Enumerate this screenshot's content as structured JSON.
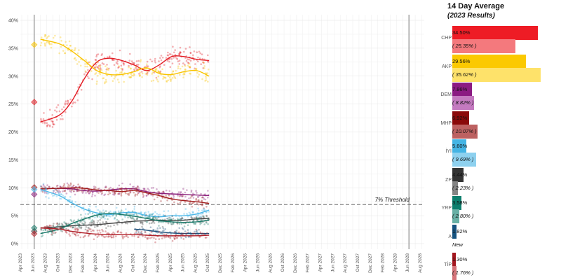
{
  "chart_data": {
    "type": "scatter",
    "y_ticks": [
      "0%",
      "5%",
      "10%",
      "15%",
      "20%",
      "25%",
      "30%",
      "35%",
      "40%"
    ],
    "ylim": [
      0,
      41
    ],
    "x_ticks": [
      "Apr 2023",
      "Jun 2023",
      "Aug 2023",
      "Oct 2023",
      "Dec 2023",
      "Feb 2024",
      "Apr 2024",
      "Jun 2024",
      "Aug 2024",
      "Oct 2024",
      "Dec 2024",
      "Feb 2025",
      "Apr 2025",
      "Jun 2025",
      "Aug 2025",
      "Oct 2025",
      "Dec 2025",
      "Feb 2026",
      "Apr 2026",
      "Jun 2026",
      "Aug 2026",
      "Oct 2026",
      "Dec 2026",
      "Feb 2027",
      "Apr 2027",
      "Jun 2027",
      "Aug 2027",
      "Oct 2027",
      "Dec 2027",
      "Feb 2028",
      "Apr 2028",
      "Jun 2028",
      "Aug 2028"
    ],
    "grid": true,
    "election_marker": "Jun 2023",
    "threshold": {
      "value": 7,
      "label": "7% Threshold"
    },
    "series": [
      {
        "name": "CHP",
        "color": "#e31b23",
        "result_2023": 25.35,
        "trend": [
          [
            "Jul 2023",
            21.8
          ],
          [
            "Oct 2023",
            23.0
          ],
          [
            "Dec 2023",
            25.5
          ],
          [
            "Feb 2024",
            29.5
          ],
          [
            "Apr 2024",
            32.5
          ],
          [
            "Jun 2024",
            33.2
          ],
          [
            "Aug 2024",
            32.8
          ],
          [
            "Oct 2024",
            32.0
          ],
          [
            "Dec 2024",
            31.0
          ],
          [
            "Feb 2025",
            32.0
          ],
          [
            "Apr 2025",
            33.5
          ],
          [
            "Jun 2025",
            33.5
          ],
          [
            "Aug 2025",
            33.0
          ],
          [
            "Oct 2025",
            32.8
          ]
        ]
      },
      {
        "name": "AKP",
        "color": "#f9c400",
        "result_2023": 35.62,
        "trend": [
          [
            "Jul 2023",
            36.6
          ],
          [
            "Oct 2023",
            35.8
          ],
          [
            "Dec 2023",
            34.5
          ],
          [
            "Feb 2024",
            32.8
          ],
          [
            "Apr 2024",
            31.0
          ],
          [
            "Jun 2024",
            30.3
          ],
          [
            "Aug 2024",
            30.3
          ],
          [
            "Oct 2024",
            30.8
          ],
          [
            "Dec 2024",
            31.5
          ],
          [
            "Feb 2025",
            30.5
          ],
          [
            "Apr 2025",
            30.3
          ],
          [
            "Jun 2025",
            30.8
          ],
          [
            "Aug 2025",
            31.0
          ],
          [
            "Oct 2025",
            30.0
          ]
        ]
      },
      {
        "name": "DEM",
        "color": "#8b1f7a",
        "result_2023": 8.82,
        "trend": [
          [
            "Jul 2023",
            9.8
          ],
          [
            "Oct 2023",
            9.9
          ],
          [
            "Dec 2023",
            9.8
          ],
          [
            "Feb 2024",
            9.5
          ],
          [
            "Apr 2024",
            9.4
          ],
          [
            "Jun 2024",
            9.6
          ],
          [
            "Aug 2024",
            9.8
          ],
          [
            "Oct 2024",
            9.8
          ],
          [
            "Dec 2024",
            9.3
          ],
          [
            "Feb 2025",
            9.0
          ],
          [
            "Apr 2025",
            8.9
          ],
          [
            "Jun 2025",
            8.8
          ],
          [
            "Aug 2025",
            8.7
          ],
          [
            "Oct 2025",
            8.6
          ]
        ]
      },
      {
        "name": "MHP",
        "color": "#a11d1d",
        "result_2023": 10.07,
        "trend": [
          [
            "Jul 2023",
            9.8
          ],
          [
            "Oct 2023",
            9.9
          ],
          [
            "Dec 2023",
            10.0
          ],
          [
            "Feb 2024",
            9.9
          ],
          [
            "Apr 2024",
            9.6
          ],
          [
            "Jun 2024",
            9.5
          ],
          [
            "Aug 2024",
            9.3
          ],
          [
            "Oct 2024",
            9.5
          ],
          [
            "Dec 2024",
            9.1
          ],
          [
            "Feb 2025",
            8.6
          ],
          [
            "Apr 2025",
            8.0
          ],
          [
            "Jun 2025",
            7.7
          ],
          [
            "Aug 2025",
            7.5
          ],
          [
            "Oct 2025",
            7.2
          ]
        ]
      },
      {
        "name": "İYİ",
        "color": "#4db8e8",
        "result_2023": 9.69,
        "trend": [
          [
            "Jul 2023",
            9.7
          ],
          [
            "Oct 2023",
            8.6
          ],
          [
            "Dec 2023",
            7.3
          ],
          [
            "Feb 2024",
            6.2
          ],
          [
            "Apr 2024",
            5.5
          ],
          [
            "Jun 2024",
            5.2
          ],
          [
            "Aug 2024",
            5.5
          ],
          [
            "Oct 2024",
            5.6
          ],
          [
            "Dec 2024",
            5.0
          ],
          [
            "Feb 2025",
            4.8
          ],
          [
            "Apr 2025",
            5.0
          ],
          [
            "Jun 2025",
            5.0
          ],
          [
            "Aug 2025",
            5.3
          ],
          [
            "Oct 2025",
            6.0
          ]
        ]
      },
      {
        "name": "ZP",
        "color": "#444444",
        "result_2023": 2.23,
        "trend": [
          [
            "Jul 2023",
            2.8
          ],
          [
            "Oct 2023",
            3.0
          ],
          [
            "Dec 2023",
            3.2
          ],
          [
            "Feb 2024",
            3.3
          ],
          [
            "Apr 2024",
            3.4
          ],
          [
            "Jun 2024",
            3.6
          ],
          [
            "Aug 2024",
            3.8
          ],
          [
            "Oct 2024",
            4.0
          ],
          [
            "Dec 2024",
            4.1
          ],
          [
            "Feb 2025",
            4.2
          ],
          [
            "Apr 2025",
            4.1
          ],
          [
            "Jun 2025",
            4.2
          ],
          [
            "Aug 2025",
            4.4
          ],
          [
            "Oct 2025",
            4.5
          ]
        ]
      },
      {
        "name": "YRP",
        "color": "#1a7a6a",
        "result_2023": 2.8,
        "trend": [
          [
            "Jul 2023",
            1.8
          ],
          [
            "Oct 2023",
            2.6
          ],
          [
            "Dec 2023",
            3.6
          ],
          [
            "Feb 2024",
            4.4
          ],
          [
            "Apr 2024",
            5.1
          ],
          [
            "Jun 2024",
            5.4
          ],
          [
            "Aug 2024",
            5.2
          ],
          [
            "Oct 2024",
            4.9
          ],
          [
            "Dec 2024",
            4.5
          ],
          [
            "Feb 2025",
            4.1
          ],
          [
            "Apr 2025",
            3.9
          ],
          [
            "Jun 2025",
            3.8
          ],
          [
            "Aug 2025",
            3.9
          ],
          [
            "Oct 2025",
            4.2
          ]
        ]
      },
      {
        "name": "A",
        "color": "#1d4f7a",
        "result_2023": null,
        "trend": [
          [
            "Oct 2024",
            2.6
          ],
          [
            "Dec 2024",
            2.4
          ],
          [
            "Feb 2025",
            2.1
          ],
          [
            "Apr 2025",
            1.9
          ],
          [
            "Jun 2025",
            1.8
          ],
          [
            "Aug 2025",
            1.8
          ],
          [
            "Oct 2025",
            1.8
          ]
        ]
      },
      {
        "name": "TİP",
        "color": "#b2222b",
        "result_2023": 1.76,
        "trend": [
          [
            "Jul 2023",
            2.8
          ],
          [
            "Oct 2023",
            2.6
          ],
          [
            "Dec 2023",
            2.2
          ],
          [
            "Feb 2024",
            1.9
          ],
          [
            "Apr 2024",
            1.7
          ],
          [
            "Jun 2024",
            1.6
          ],
          [
            "Aug 2024",
            1.6
          ],
          [
            "Oct 2024",
            1.6
          ],
          [
            "Dec 2024",
            1.5
          ],
          [
            "Feb 2025",
            1.4
          ],
          [
            "Apr 2025",
            1.4
          ],
          [
            "Jun 2025",
            1.4
          ],
          [
            "Aug 2025",
            1.4
          ],
          [
            "Oct 2025",
            1.5
          ]
        ]
      }
    ]
  },
  "side_panel": {
    "title": "14 Day Average",
    "subtitle": "(2023 Results)",
    "bar_max": 41,
    "parties": [
      {
        "label": "CHP",
        "avg": 34.5,
        "avg_text": "34.50%",
        "result": 25.35,
        "result_text": "( 25.35% )",
        "color": "#ee1c25",
        "light": "#f4797d"
      },
      {
        "label": "AKP",
        "avg": 29.56,
        "avg_text": "29.56%",
        "result": 35.62,
        "result_text": "( 35.62% )",
        "color": "#fbc901",
        "light": "#fee26a"
      },
      {
        "label": "DEM",
        "avg": 7.86,
        "avg_text": "7.86%",
        "result": 8.82,
        "result_text": "( 8.82% )",
        "color": "#8b1a82",
        "light": "#c47ac0"
      },
      {
        "label": "MHP",
        "avg": 6.92,
        "avg_text": "6.92%",
        "result": 10.07,
        "result_text": "( 10.07% )",
        "color": "#8a0a0a",
        "light": "#bd6161"
      },
      {
        "label": "İYİ",
        "avg": 5.6,
        "avg_text": "5.60%",
        "result": 9.69,
        "result_text": "( 9.69% )",
        "color": "#44b4e4",
        "light": "#8ed1ef"
      },
      {
        "label": "ZP",
        "avg": 4.44,
        "avg_text": "4.44%",
        "result": 2.23,
        "result_text": "( 2.23% )",
        "color": "#333333",
        "light": "#858585"
      },
      {
        "label": "YRP",
        "avg": 3.58,
        "avg_text": "3.58%",
        "result": 2.8,
        "result_text": "( 2.80% )",
        "color": "#0d7f6e",
        "light": "#68b0a5"
      },
      {
        "label": "A",
        "avg": 1.82,
        "avg_text": "1.82%",
        "result": 0,
        "result_text": "New",
        "color": "#15527f",
        "light": "#7fa3bf"
      },
      {
        "label": "TİP",
        "avg": 1.3,
        "avg_text": "1.30%",
        "result": 1.76,
        "result_text": "( 1.76% )",
        "color": "#a3171f",
        "light": "#d47379"
      }
    ]
  }
}
